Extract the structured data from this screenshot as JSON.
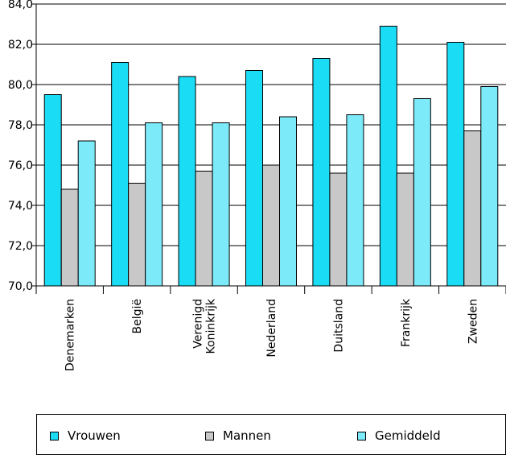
{
  "chart_data": {
    "type": "bar",
    "categories": [
      "Denemarken",
      "België",
      "Verenigd Koninkrijk",
      "Nederland",
      "Duitsland",
      "Frankrijk",
      "Zweden"
    ],
    "category_lines": [
      [
        "Denemarken"
      ],
      [
        "België"
      ],
      [
        "Verenigd",
        "Koninkrijk"
      ],
      [
        "Nederland"
      ],
      [
        "Duitsland"
      ],
      [
        "Frankrijk"
      ],
      [
        "Zweden"
      ]
    ],
    "series": [
      {
        "name": "Vrouwen",
        "values": [
          79.5,
          81.1,
          80.4,
          80.7,
          81.3,
          82.9,
          82.1
        ]
      },
      {
        "name": "Mannen",
        "values": [
          74.8,
          75.1,
          75.7,
          76.0,
          75.6,
          75.6,
          77.7
        ]
      },
      {
        "name": "Gemiddeld",
        "values": [
          77.2,
          78.1,
          78.1,
          78.4,
          78.5,
          79.3,
          79.9
        ]
      }
    ],
    "colors": [
      "#1adcf5",
      "#c8c8c8",
      "#7ceaf8"
    ],
    "ylim": [
      70,
      84
    ],
    "yticks": [
      "70,0",
      "72,0",
      "74,0",
      "76,0",
      "78,0",
      "80,0",
      "82,0",
      "84,0"
    ],
    "grid": true,
    "legend_position": "bottom",
    "title": "",
    "xlabel": "",
    "ylabel": ""
  }
}
